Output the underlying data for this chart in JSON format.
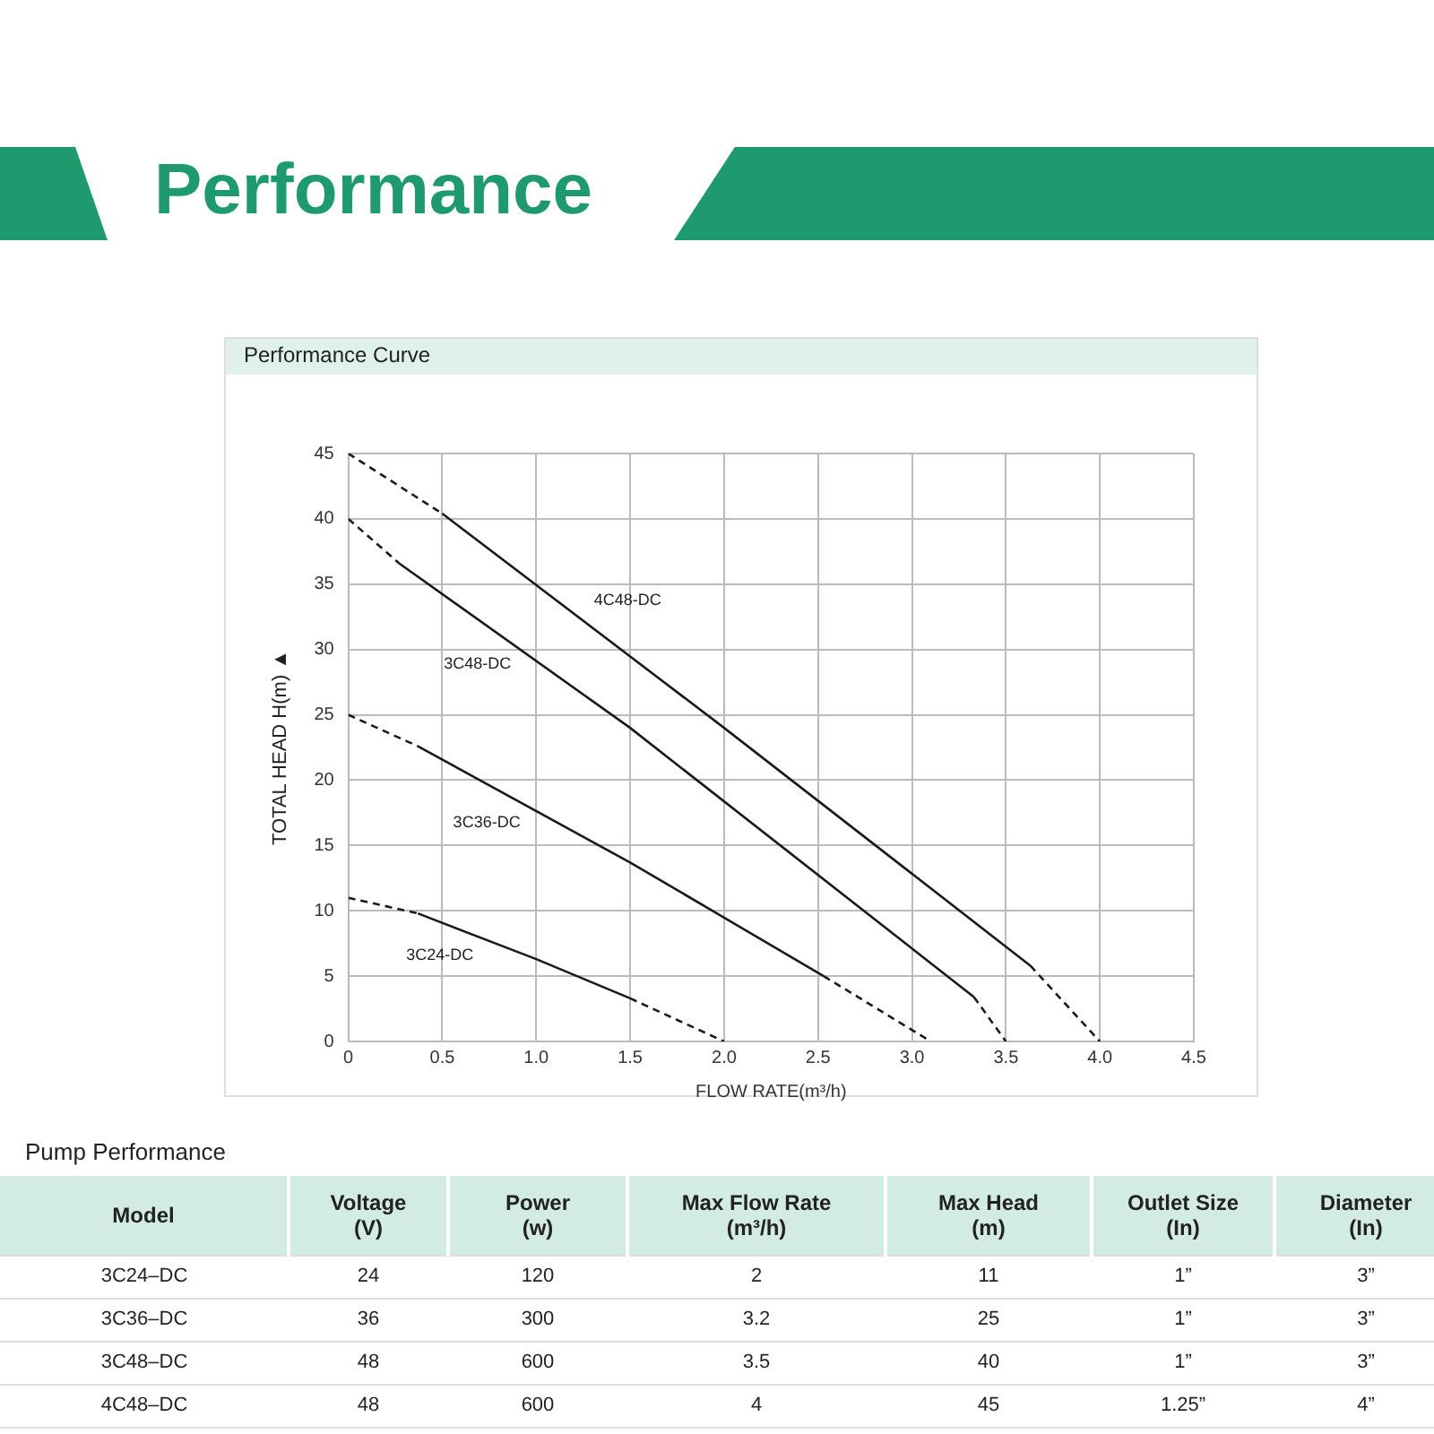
{
  "chart_data": [
    {
      "type": "line",
      "title": "Performance",
      "subtitle": "Performance Curve",
      "xlabel": "FLOW RATE(m³/h)",
      "ylabel": "TOTAL HEAD H(m) ▲",
      "xlim": [
        0,
        4.5
      ],
      "xticks": [
        0,
        {
          "value": 0.5,
          "label": "0.5"
        },
        {
          "value": 1,
          "label": "1.0"
        },
        {
          "value": 1.5,
          "label": "1.5"
        },
        {
          "value": 2,
          "label": "2.0"
        },
        {
          "value": 2.5,
          "label": "2.5"
        },
        {
          "value": 3,
          "label": "3.0"
        },
        {
          "value": 3.5,
          "label": "3.5"
        },
        {
          "value": 4,
          "label": "4.0"
        },
        {
          "value": 4.5,
          "label": "4.5"
        }
      ],
      "ylim": [
        0,
        45
      ],
      "yticks": [
        0,
        5,
        10,
        15,
        20,
        25,
        30,
        35,
        40,
        45
      ],
      "grid": true,
      "marker": "none",
      "series": [
        {
          "color": "#1a1a1a",
          "line_style": "dashed",
          "x": [
            0,
            0.5
          ],
          "values": [
            45,
            40.4
          ]
        },
        {
          "name": "4C48-DC",
          "color": "#1a1a1a",
          "line_style": "solid",
          "x": [
            0.5,
            2.0,
            3.63
          ],
          "values": [
            40.4,
            24,
            5.8
          ]
        },
        {
          "color": "#1a1a1a",
          "line_style": "dashed",
          "x": [
            3.63,
            4.0
          ],
          "values": [
            5.8,
            0
          ]
        },
        {
          "color": "#1a1a1a",
          "line_style": "dashed",
          "x": [
            0,
            0.27
          ],
          "values": [
            40,
            36.6
          ]
        },
        {
          "name": "3C48-DC",
          "color": "#1a1a1a",
          "line_style": "solid",
          "x": [
            0.27,
            1.5,
            3.33
          ],
          "values": [
            36.6,
            24,
            3.4
          ]
        },
        {
          "color": "#1a1a1a",
          "line_style": "dashed",
          "x": [
            3.33,
            3.5
          ],
          "values": [
            3.4,
            0
          ]
        },
        {
          "color": "#1a1a1a",
          "line_style": "dashed",
          "x": [
            0,
            0.37
          ],
          "values": [
            25,
            22.6
          ]
        },
        {
          "name": "3C36-DC",
          "color": "#1a1a1a",
          "line_style": "solid",
          "x": [
            0.37,
            1.5,
            2.53
          ],
          "values": [
            22.6,
            13.7,
            5.0
          ]
        },
        {
          "color": "#1a1a1a",
          "line_style": "dashed",
          "x": [
            2.53,
            3.1
          ],
          "values": [
            5.0,
            0
          ]
        },
        {
          "color": "#1a1a1a",
          "line_style": "dashed",
          "x": [
            0,
            0.37
          ],
          "values": [
            11,
            9.8
          ]
        },
        {
          "name": "3C24-DC",
          "color": "#1a1a1a",
          "line_style": "solid",
          "x": [
            0.37,
            1.0,
            1.5
          ],
          "values": [
            9.8,
            6.3,
            3.3
          ]
        },
        {
          "color": "#1a1a1a",
          "line_style": "dashed",
          "x": [
            1.5,
            2.0
          ],
          "values": [
            3.3,
            0
          ]
        }
      ]
    },
    {
      "type": "other",
      "title": "Pump Performance",
      "annotations": [
        "Model",
        "Voltage\n(V)",
        "Power\n(w)",
        "Max Flow Rate\n(m³/h)",
        "Max Head\n(m)",
        "Outlet Size\n(In)",
        "Diameter\n(In)",
        "3C24–DC",
        "24",
        "120",
        "2",
        "11",
        "1”",
        "3”",
        "3C36–DC",
        "36",
        "300",
        "3.2",
        "25",
        "1”",
        "3”",
        "3C48–DC",
        "48",
        "600",
        "3.5",
        "40",
        "1”",
        "3”",
        "4C48–DC",
        "48",
        "600",
        "4",
        "45",
        "1.25”",
        "4”"
      ]
    }
  ]
}
